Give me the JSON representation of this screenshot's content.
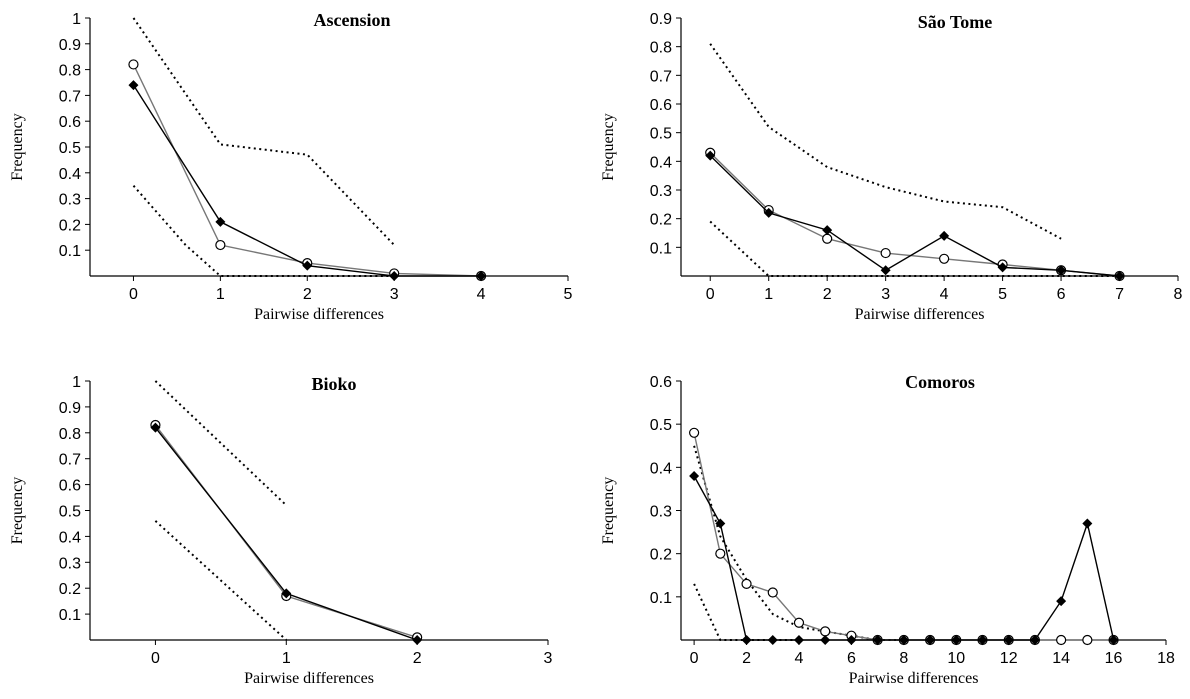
{
  "chart_data": [
    {
      "type": "line",
      "title": "Ascension",
      "xlabel": "Pairwise differences",
      "ylabel": "Frequency",
      "xlim": [
        -0.5,
        5
      ],
      "ylim": [
        0,
        1
      ],
      "xticks": [
        "0",
        "1",
        "2",
        "3",
        "4",
        "5"
      ],
      "yticks": [
        "0.1",
        "0.2",
        "0.3",
        "0.4",
        "0.5",
        "0.6",
        "0.7",
        "0.8",
        "0.9",
        "1"
      ],
      "grid": false,
      "series": [
        {
          "marker": "filled-diamond",
          "style": "solid",
          "color": "#000000",
          "x": [
            0,
            1,
            2,
            3,
            4
          ],
          "y": [
            0.74,
            0.21,
            0.04,
            0.0,
            0.0
          ]
        },
        {
          "marker": "open-circle",
          "style": "solid",
          "color": "#777777",
          "x": [
            0,
            1,
            2,
            3,
            4
          ],
          "y": [
            0.82,
            0.12,
            0.05,
            0.01,
            0.0
          ]
        },
        {
          "marker": "none",
          "style": "dotted",
          "color": "#000000",
          "x": [
            0,
            1,
            2,
            3
          ],
          "y": [
            1.0,
            0.51,
            0.47,
            0.12
          ]
        },
        {
          "marker": "none",
          "style": "dotted",
          "color": "#000000",
          "x": [
            0,
            0.6,
            1,
            2,
            3
          ],
          "y": [
            0.35,
            0.12,
            0.0,
            0.0,
            0.0
          ]
        }
      ]
    },
    {
      "type": "line",
      "title": "São Tome",
      "xlabel": "Pairwise differences",
      "ylabel": "Frequency",
      "xlim": [
        -0.5,
        8
      ],
      "ylim": [
        0,
        0.9
      ],
      "xticks": [
        "0",
        "1",
        "2",
        "3",
        "4",
        "5",
        "6",
        "7",
        "8"
      ],
      "yticks": [
        "0.1",
        "0.2",
        "0.3",
        "0.4",
        "0.5",
        "0.6",
        "0.7",
        "0.8",
        "0.9"
      ],
      "grid": false,
      "series": [
        {
          "marker": "filled-diamond",
          "style": "solid",
          "color": "#000000",
          "x": [
            0,
            1,
            2,
            3,
            4,
            5,
            6,
            7
          ],
          "y": [
            0.42,
            0.22,
            0.16,
            0.02,
            0.14,
            0.03,
            0.02,
            0.0
          ]
        },
        {
          "marker": "open-circle",
          "style": "solid",
          "color": "#777777",
          "x": [
            0,
            1,
            2,
            3,
            4,
            5,
            6,
            7
          ],
          "y": [
            0.43,
            0.23,
            0.13,
            0.08,
            0.06,
            0.04,
            0.02,
            0.0
          ]
        },
        {
          "marker": "none",
          "style": "dotted",
          "color": "#000000",
          "x": [
            0,
            1,
            2,
            3,
            4,
            5,
            6
          ],
          "y": [
            0.81,
            0.52,
            0.38,
            0.31,
            0.26,
            0.24,
            0.13
          ]
        },
        {
          "marker": "none",
          "style": "dotted",
          "color": "#000000",
          "x": [
            0,
            1,
            2,
            3,
            4,
            5,
            6,
            7
          ],
          "y": [
            0.19,
            0.0,
            0.0,
            0.0,
            0.0,
            0.0,
            0.0,
            0.0
          ]
        }
      ]
    },
    {
      "type": "line",
      "title": "Bioko",
      "xlabel": "Pairwise differences",
      "ylabel": "Frequency",
      "xlim": [
        -0.5,
        3
      ],
      "ylim": [
        0,
        1
      ],
      "xticks": [
        "0",
        "1",
        "2",
        "3"
      ],
      "yticks": [
        "0.1",
        "0.2",
        "0.3",
        "0.4",
        "0.5",
        "0.6",
        "0.7",
        "0.8",
        "0.9",
        "1"
      ],
      "grid": false,
      "series": [
        {
          "marker": "filled-diamond",
          "style": "solid",
          "color": "#000000",
          "x": [
            0,
            1,
            2
          ],
          "y": [
            0.82,
            0.18,
            0.0
          ]
        },
        {
          "marker": "open-circle",
          "style": "solid",
          "color": "#777777",
          "x": [
            0,
            1,
            2
          ],
          "y": [
            0.83,
            0.17,
            0.01
          ]
        },
        {
          "marker": "none",
          "style": "dotted",
          "color": "#000000",
          "x": [
            0,
            1
          ],
          "y": [
            1.0,
            0.52
          ]
        },
        {
          "marker": "none",
          "style": "dotted",
          "color": "#000000",
          "x": [
            0,
            1
          ],
          "y": [
            0.46,
            0.0
          ]
        }
      ]
    },
    {
      "type": "line",
      "title": "Comoros",
      "xlabel": "Pairwise differences",
      "ylabel": "Frequency",
      "xlim": [
        -0.5,
        18
      ],
      "ylim": [
        0,
        0.6
      ],
      "xticks": [
        "0",
        "2",
        "4",
        "6",
        "8",
        "10",
        "12",
        "14",
        "16",
        "18"
      ],
      "yticks": [
        "0.1",
        "0.2",
        "0.3",
        "0.4",
        "0.5",
        "0.6"
      ],
      "grid": false,
      "series": [
        {
          "marker": "filled-diamond",
          "style": "solid",
          "color": "#000000",
          "x": [
            0,
            1,
            2,
            3,
            4,
            5,
            6,
            7,
            8,
            9,
            10,
            11,
            12,
            13,
            14,
            15,
            16
          ],
          "y": [
            0.38,
            0.27,
            0.0,
            0.0,
            0.0,
            0.0,
            0.0,
            0.0,
            0.0,
            0.0,
            0.0,
            0.0,
            0.0,
            0.0,
            0.09,
            0.27,
            0.0
          ]
        },
        {
          "marker": "open-circle",
          "style": "solid",
          "color": "#777777",
          "x": [
            0,
            1,
            2,
            3,
            4,
            5,
            6,
            7,
            8,
            9,
            10,
            11,
            12,
            13,
            14,
            15,
            16
          ],
          "y": [
            0.48,
            0.2,
            0.13,
            0.11,
            0.04,
            0.02,
            0.01,
            0.0,
            0.0,
            0.0,
            0.0,
            0.0,
            0.0,
            0.0,
            0.0,
            0.0,
            0.0
          ]
        },
        {
          "marker": "none",
          "style": "dotted",
          "color": "#000000",
          "x": [
            0,
            1,
            2,
            3,
            4,
            5,
            6,
            7,
            8
          ],
          "y": [
            0.45,
            0.24,
            0.14,
            0.06,
            0.03,
            0.02,
            0.01,
            0.0,
            0.0
          ]
        },
        {
          "marker": "none",
          "style": "dotted",
          "color": "#000000",
          "x": [
            0,
            1,
            2,
            3,
            4
          ],
          "y": [
            0.13,
            0.0,
            0.0,
            0.0,
            0.0
          ]
        }
      ]
    }
  ]
}
